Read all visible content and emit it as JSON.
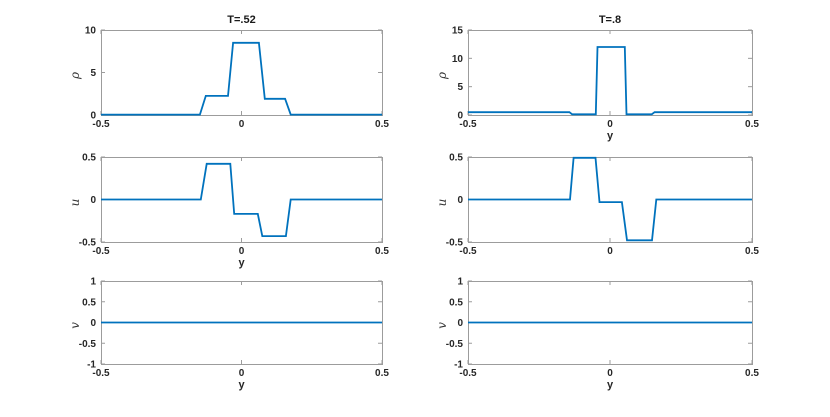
{
  "figure": {
    "background": "#ffffff",
    "line_color": "#0072BD",
    "axis_color": "#9c9c9c",
    "text_color": "#262626"
  },
  "chart_data": [
    {
      "id": "rho-t052",
      "type": "line",
      "row": 0,
      "col": 0,
      "title": "T=.52",
      "xlabel": "",
      "ylabel": "ρ",
      "xlim": [
        -0.5,
        0.5
      ],
      "ylim": [
        0,
        10
      ],
      "xticks": [
        -0.5,
        0,
        0.5
      ],
      "xtick_labels": [
        "-0.5",
        "0",
        "0.5"
      ],
      "yticks": [
        0,
        5,
        10
      ],
      "ytick_labels": [
        "0",
        "5",
        "10"
      ],
      "grid": false,
      "series": [
        {
          "name": "rho",
          "points": [
            [
              -0.5,
              0.05
            ],
            [
              -0.148,
              0.05
            ],
            [
              -0.127,
              2.25
            ],
            [
              -0.048,
              2.25
            ],
            [
              -0.03,
              8.5
            ],
            [
              0.062,
              8.5
            ],
            [
              0.083,
              1.9
            ],
            [
              0.155,
              1.9
            ],
            [
              0.175,
              0.05
            ],
            [
              0.5,
              0.05
            ]
          ]
        }
      ]
    },
    {
      "id": "rho-t08",
      "type": "line",
      "row": 0,
      "col": 1,
      "title": "T=.8",
      "xlabel": "y",
      "ylabel": "ρ",
      "xlim": [
        -0.5,
        0.5
      ],
      "ylim": [
        0,
        15
      ],
      "xticks": [
        -0.5,
        0,
        0.5
      ],
      "xtick_labels": [
        "-0.5",
        "0",
        "0.5"
      ],
      "yticks": [
        0,
        5,
        10,
        15
      ],
      "ytick_labels": [
        "0",
        "5",
        "10",
        "15"
      ],
      "grid": false,
      "series": [
        {
          "name": "rho",
          "points": [
            [
              -0.5,
              0.5
            ],
            [
              -0.143,
              0.5
            ],
            [
              -0.133,
              0.12
            ],
            [
              -0.05,
              0.12
            ],
            [
              -0.044,
              12
            ],
            [
              0.052,
              12
            ],
            [
              0.058,
              0.12
            ],
            [
              0.147,
              0.12
            ],
            [
              0.157,
              0.5
            ],
            [
              0.5,
              0.5
            ]
          ]
        }
      ]
    },
    {
      "id": "u-t052",
      "type": "line",
      "row": 1,
      "col": 0,
      "title": "",
      "xlabel": "y",
      "ylabel": "u",
      "xlim": [
        -0.5,
        0.5
      ],
      "ylim": [
        -0.5,
        0.5
      ],
      "xticks": [
        -0.5,
        0,
        0.5
      ],
      "xtick_labels": [
        "-0.5",
        "0",
        "0.5"
      ],
      "yticks": [
        -0.5,
        0,
        0.5
      ],
      "ytick_labels": [
        "-0.5",
        "0",
        "0.5"
      ],
      "grid": false,
      "series": [
        {
          "name": "u",
          "points": [
            [
              -0.5,
              0
            ],
            [
              -0.145,
              0
            ],
            [
              -0.124,
              0.42
            ],
            [
              -0.04,
              0.42
            ],
            [
              -0.026,
              -0.17
            ],
            [
              0.058,
              -0.17
            ],
            [
              0.074,
              -0.43
            ],
            [
              0.158,
              -0.43
            ],
            [
              0.175,
              0
            ],
            [
              0.5,
              0
            ]
          ]
        }
      ]
    },
    {
      "id": "u-t08",
      "type": "line",
      "row": 1,
      "col": 1,
      "title": "",
      "xlabel": "",
      "ylabel": "u",
      "xlim": [
        -0.5,
        0.5
      ],
      "ylim": [
        -0.5,
        0.5
      ],
      "xticks": [
        -0.5,
        0,
        0.5
      ],
      "xtick_labels": [
        "-0.5",
        "0",
        "0.5"
      ],
      "yticks": [
        -0.5,
        0,
        0.5
      ],
      "ytick_labels": [
        "-0.5",
        "0",
        "0.5"
      ],
      "grid": false,
      "series": [
        {
          "name": "u",
          "points": [
            [
              -0.5,
              0
            ],
            [
              -0.141,
              0
            ],
            [
              -0.128,
              0.49
            ],
            [
              -0.051,
              0.49
            ],
            [
              -0.037,
              -0.03
            ],
            [
              0.042,
              -0.03
            ],
            [
              0.06,
              -0.48
            ],
            [
              0.148,
              -0.48
            ],
            [
              0.163,
              0
            ],
            [
              0.5,
              0
            ]
          ]
        }
      ]
    },
    {
      "id": "v-t052",
      "type": "line",
      "row": 2,
      "col": 0,
      "title": "",
      "xlabel": "y",
      "ylabel": "v",
      "xlim": [
        -0.5,
        0.5
      ],
      "ylim": [
        -1,
        1
      ],
      "xticks": [
        -0.5,
        0,
        0.5
      ],
      "xtick_labels": [
        "-0.5",
        "0",
        "0.5"
      ],
      "yticks": [
        -1,
        -0.5,
        0,
        0.5,
        1
      ],
      "ytick_labels": [
        "-1",
        "-0.5",
        "0",
        "0.5",
        "1"
      ],
      "grid": false,
      "series": [
        {
          "name": "v",
          "points": [
            [
              -0.5,
              0
            ],
            [
              0.5,
              0
            ]
          ]
        }
      ]
    },
    {
      "id": "v-t08",
      "type": "line",
      "row": 2,
      "col": 1,
      "title": "",
      "xlabel": "y",
      "ylabel": "v",
      "xlim": [
        -0.5,
        0.5
      ],
      "ylim": [
        -1,
        1
      ],
      "xticks": [
        -0.5,
        0,
        0.5
      ],
      "xtick_labels": [
        "-0.5",
        "0",
        "0.5"
      ],
      "yticks": [
        -1,
        -0.5,
        0,
        0.5,
        1
      ],
      "ytick_labels": [
        "-1",
        "-0.5",
        "0",
        "0.5",
        "1"
      ],
      "grid": false,
      "series": [
        {
          "name": "v",
          "points": [
            [
              -0.5,
              0
            ],
            [
              0.5,
              0
            ]
          ]
        }
      ]
    }
  ]
}
